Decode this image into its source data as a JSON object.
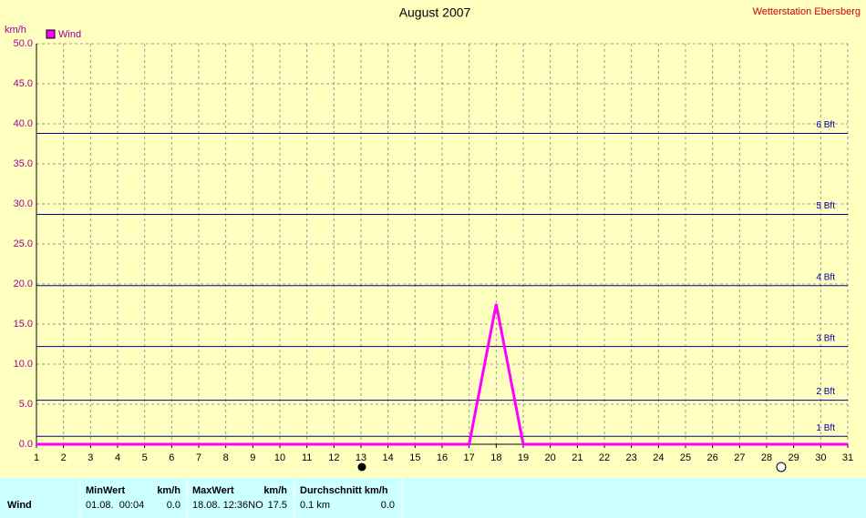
{
  "chart_data": {
    "type": "line",
    "title": "August 2007",
    "source": "Wetterstation Ebersberg",
    "y_label": "km/h",
    "x": [
      1,
      2,
      3,
      4,
      5,
      6,
      7,
      8,
      9,
      10,
      11,
      12,
      13,
      14,
      15,
      16,
      17,
      18,
      19,
      20,
      21,
      22,
      23,
      24,
      25,
      26,
      27,
      28,
      29,
      30,
      31
    ],
    "series": [
      {
        "name": "Wind",
        "color": "#ff00ff",
        "values": [
          0,
          0,
          0,
          0,
          0,
          0,
          0,
          0,
          0,
          0,
          0,
          0,
          0,
          0,
          0,
          0,
          0,
          17.5,
          0,
          0,
          0,
          0,
          0,
          0,
          0,
          0,
          0,
          0,
          0,
          0,
          0
        ]
      }
    ],
    "xlim": [
      1,
      31
    ],
    "ylim": [
      0,
      50
    ],
    "xticks": [
      1,
      2,
      3,
      4,
      5,
      6,
      7,
      8,
      9,
      10,
      11,
      12,
      13,
      14,
      15,
      16,
      17,
      18,
      19,
      20,
      21,
      22,
      23,
      24,
      25,
      26,
      27,
      28,
      29,
      30,
      31
    ],
    "yticks": [
      {
        "value": 0,
        "label": "0.0"
      },
      {
        "value": 5,
        "label": "5.0"
      },
      {
        "value": 10,
        "label": "10.0"
      },
      {
        "value": 15,
        "label": "15.0"
      },
      {
        "value": 20,
        "label": "20.0"
      },
      {
        "value": 25,
        "label": "25.0"
      },
      {
        "value": 30,
        "label": "30.0"
      },
      {
        "value": 35,
        "label": "35.0"
      },
      {
        "value": 40,
        "label": "40.0"
      },
      {
        "value": 45,
        "label": "45.0"
      },
      {
        "value": 50,
        "label": "50.0"
      }
    ],
    "grid": true,
    "legend": "top-left",
    "reference_lines": [
      {
        "label": "1 Bft",
        "value": 1,
        "color": "#0000a0"
      },
      {
        "label": "2 Bft",
        "value": 5.5,
        "color": "#0000a0"
      },
      {
        "label": "3 Bft",
        "value": 12.2,
        "color": "#0000a0"
      },
      {
        "label": "4 Bft",
        "value": 19.8,
        "color": "#0000a0"
      },
      {
        "label": "5 Bft",
        "value": 28.7,
        "color": "#0000a0"
      },
      {
        "label": "6 Bft",
        "value": 38.8,
        "color": "#0000a0"
      }
    ]
  },
  "table": {
    "columns": [
      {
        "header": "MinWert",
        "unit": "km/h"
      },
      {
        "header": "MaxWert",
        "unit": "km/h"
      },
      {
        "header": "Durchschnitt km/h"
      }
    ],
    "rows": [
      {
        "label": "Wind",
        "cells": [
          [
            "01.08.  00:04",
            "0.0"
          ],
          [
            "18.08. 12:36NO",
            "17.5"
          ],
          [
            "0.1 km",
            "0.0"
          ]
        ]
      }
    ]
  }
}
